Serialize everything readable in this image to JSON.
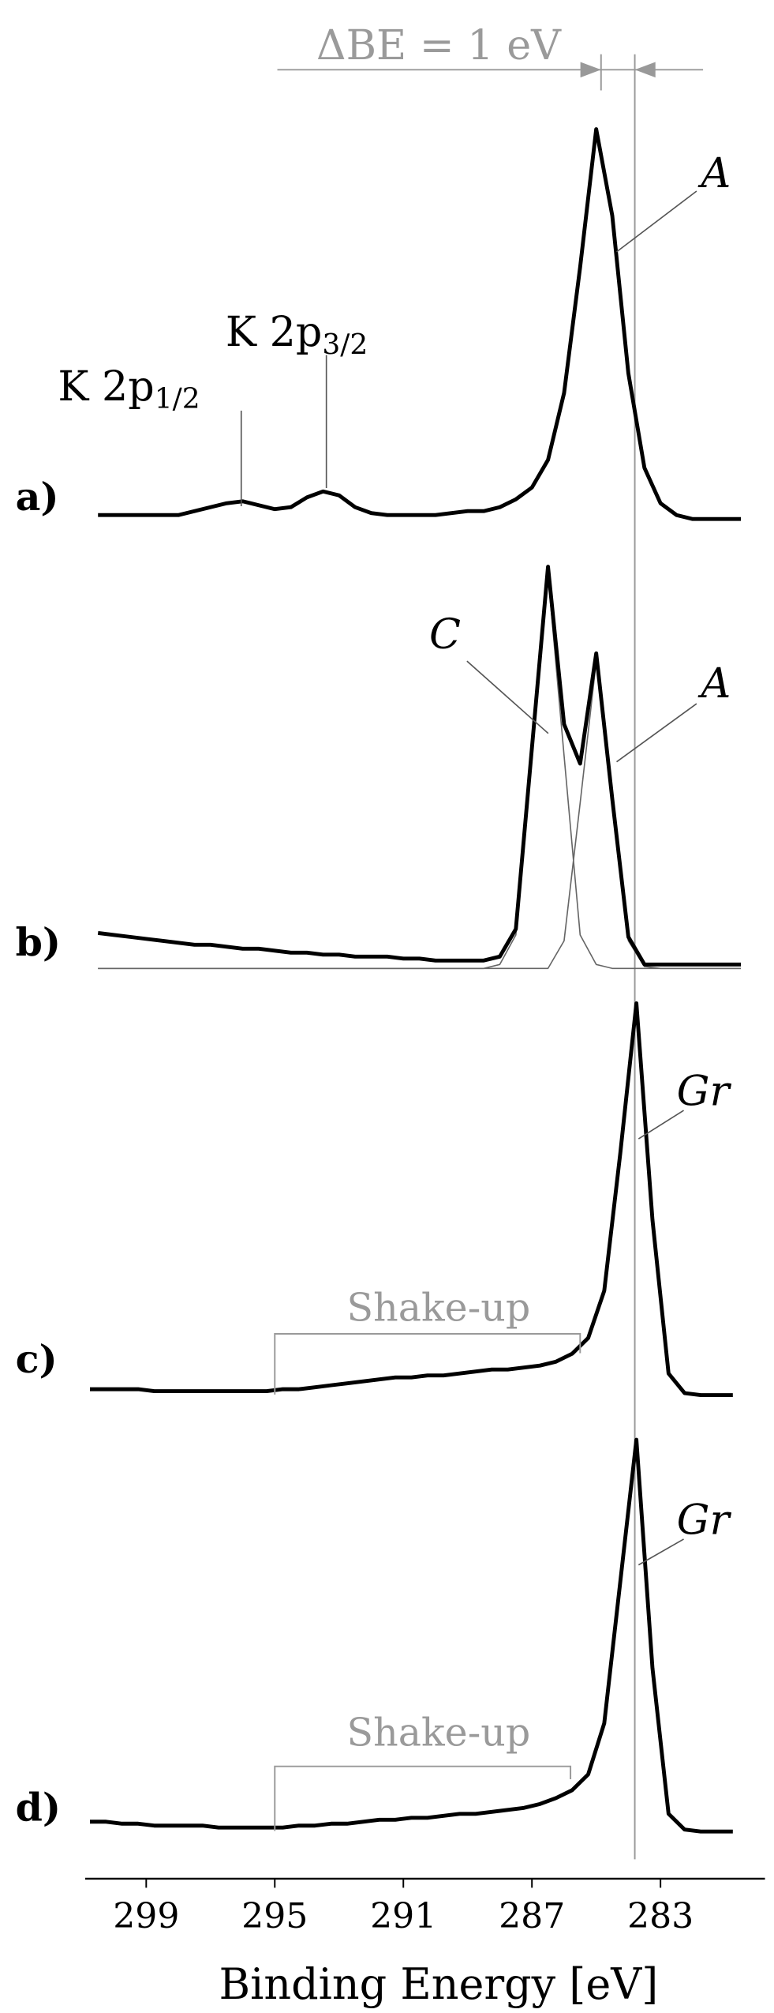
{
  "chart_data": {
    "type": "line",
    "xlim": [
      300.9,
      279.75
    ],
    "xticks": [
      299,
      295,
      291,
      287,
      283
    ],
    "xlabel": "Binding Energy [eV]",
    "delta_label": "ΔBE = 1 eV",
    "reference_lines": [
      284.85,
      283.8
    ],
    "panels": [
      {
        "label": "a)",
        "ylim": [
          0,
          1
        ],
        "x": [
          300.5,
          300,
          299.5,
          299,
          298.5,
          298,
          297.5,
          297,
          296.5,
          296,
          295.5,
          295,
          294.5,
          294,
          293.5,
          293,
          292.5,
          292,
          291.5,
          291,
          290.5,
          290,
          289.5,
          289,
          288.5,
          288,
          287.5,
          287,
          286.5,
          286,
          285.5,
          285,
          284.5,
          284,
          283.5,
          283,
          282.5,
          282,
          281.5,
          281,
          280.5
        ],
        "series": [
          {
            "color": "#000000",
            "values": [
              0.02,
              0.02,
              0.02,
              0.02,
              0.02,
              0.02,
              0.03,
              0.04,
              0.05,
              0.055,
              0.045,
              0.035,
              0.04,
              0.065,
              0.08,
              0.07,
              0.04,
              0.025,
              0.02,
              0.02,
              0.02,
              0.02,
              0.025,
              0.03,
              0.03,
              0.04,
              0.06,
              0.09,
              0.16,
              0.33,
              0.65,
              1.0,
              0.78,
              0.38,
              0.14,
              0.05,
              0.02,
              0.01,
              0.01,
              0.01,
              0.01
            ]
          }
        ],
        "annotations": [
          {
            "text": "A"
          },
          {
            "text": "K 2p",
            "subscript": "3/2"
          },
          {
            "text": "K 2p",
            "subscript": "1/2"
          }
        ]
      },
      {
        "label": "b)",
        "ylim": [
          0,
          1
        ],
        "x": [
          300.5,
          300,
          299.5,
          299,
          298.5,
          298,
          297.5,
          297,
          296.5,
          296,
          295.5,
          295,
          294.5,
          294,
          293.5,
          293,
          292.5,
          292,
          291.5,
          291,
          290.5,
          290,
          289.5,
          289,
          288.5,
          288,
          287.5,
          287,
          286.5,
          286,
          285.5,
          285,
          284.5,
          284,
          283.5,
          283,
          282.5,
          282,
          281.5,
          281,
          280.5
        ],
        "series": [
          {
            "color": "#000000",
            "values": [
              0.09,
              0.085,
              0.08,
              0.075,
              0.07,
              0.065,
              0.06,
              0.06,
              0.055,
              0.05,
              0.05,
              0.045,
              0.04,
              0.04,
              0.035,
              0.035,
              0.03,
              0.03,
              0.03,
              0.025,
              0.025,
              0.02,
              0.02,
              0.02,
              0.02,
              0.03,
              0.1,
              0.56,
              1.02,
              0.62,
              0.52,
              0.8,
              0.43,
              0.08,
              0.01,
              0.01,
              0.01,
              0.01,
              0.01,
              0.01,
              0.01
            ]
          },
          {
            "color": "#666666",
            "values": [
              0,
              0,
              0,
              0,
              0,
              0,
              0,
              0,
              0,
              0,
              0,
              0,
              0,
              0,
              0,
              0,
              0,
              0,
              0,
              0,
              0,
              0,
              0,
              0,
              0,
              0.01,
              0.085,
              0.54,
              1,
              0.54,
              0.085,
              0.01,
              0,
              0,
              0,
              0,
              0,
              0,
              0,
              0,
              0
            ]
          },
          {
            "color": "#666666",
            "values": [
              0,
              0,
              0,
              0,
              0,
              0,
              0,
              0,
              0,
              0,
              0,
              0,
              0,
              0,
              0,
              0,
              0,
              0,
              0,
              0,
              0,
              0,
              0,
              0,
              0,
              0,
              0,
              0,
              0,
              0.07,
              0.42,
              0.78,
              0.42,
              0.07,
              0.005,
              0,
              0,
              0,
              0,
              0,
              0
            ]
          }
        ],
        "annotations": [
          {
            "text": "C"
          },
          {
            "text": "A"
          }
        ]
      },
      {
        "label": "c)",
        "ylim": [
          0,
          1
        ],
        "x": [
          300.75,
          300.25,
          299.75,
          299.25,
          298.75,
          298.25,
          297.75,
          297.25,
          296.75,
          296.25,
          295.75,
          295.25,
          294.75,
          294.25,
          293.75,
          293.25,
          292.75,
          292.25,
          291.75,
          291.25,
          290.75,
          290.25,
          289.75,
          289.25,
          288.75,
          288.25,
          287.75,
          287.25,
          286.75,
          286.25,
          285.75,
          285.25,
          284.75,
          284.25,
          283.75,
          283.25,
          282.75,
          282.25,
          281.75,
          281.25,
          280.75
        ],
        "series": [
          {
            "color": "#000000",
            "values": [
              0.02,
              0.02,
              0.02,
              0.02,
              0.015,
              0.015,
              0.015,
              0.015,
              0.015,
              0.015,
              0.015,
              0.015,
              0.02,
              0.02,
              0.025,
              0.03,
              0.035,
              0.04,
              0.045,
              0.05,
              0.05,
              0.055,
              0.055,
              0.06,
              0.065,
              0.07,
              0.07,
              0.075,
              0.08,
              0.09,
              0.11,
              0.15,
              0.27,
              0.62,
              1.0,
              0.45,
              0.06,
              0.01,
              0.005,
              0.005,
              0.005
            ]
          }
        ],
        "annotations": [
          {
            "text": "Gr"
          },
          {
            "text": "Shake-up"
          }
        ],
        "shakeup_range": [
          295,
          285.5
        ]
      },
      {
        "label": "d)",
        "ylim": [
          0,
          1
        ],
        "x": [
          300.75,
          300.25,
          299.75,
          299.25,
          298.75,
          298.25,
          297.75,
          297.25,
          296.75,
          296.25,
          295.75,
          295.25,
          294.75,
          294.25,
          293.75,
          293.25,
          292.75,
          292.25,
          291.75,
          291.25,
          290.75,
          290.25,
          289.75,
          289.25,
          288.75,
          288.25,
          287.75,
          287.25,
          286.75,
          286.25,
          285.75,
          285.25,
          284.75,
          284.25,
          283.75,
          283.25,
          282.75,
          282.25,
          281.75,
          281.25,
          280.75
        ],
        "series": [
          {
            "color": "#000000",
            "values": [
              0.03,
              0.03,
              0.025,
              0.025,
              0.02,
              0.02,
              0.02,
              0.02,
              0.015,
              0.015,
              0.015,
              0.015,
              0.015,
              0.02,
              0.02,
              0.025,
              0.025,
              0.03,
              0.035,
              0.035,
              0.04,
              0.04,
              0.045,
              0.05,
              0.05,
              0.055,
              0.06,
              0.065,
              0.075,
              0.09,
              0.11,
              0.15,
              0.28,
              0.64,
              1.0,
              0.42,
              0.05,
              0.01,
              0.005,
              0.005,
              0.005
            ]
          }
        ],
        "annotations": [
          {
            "text": "Gr"
          },
          {
            "text": "Shake-up"
          }
        ],
        "shakeup_range": [
          295,
          285.8
        ]
      }
    ]
  }
}
